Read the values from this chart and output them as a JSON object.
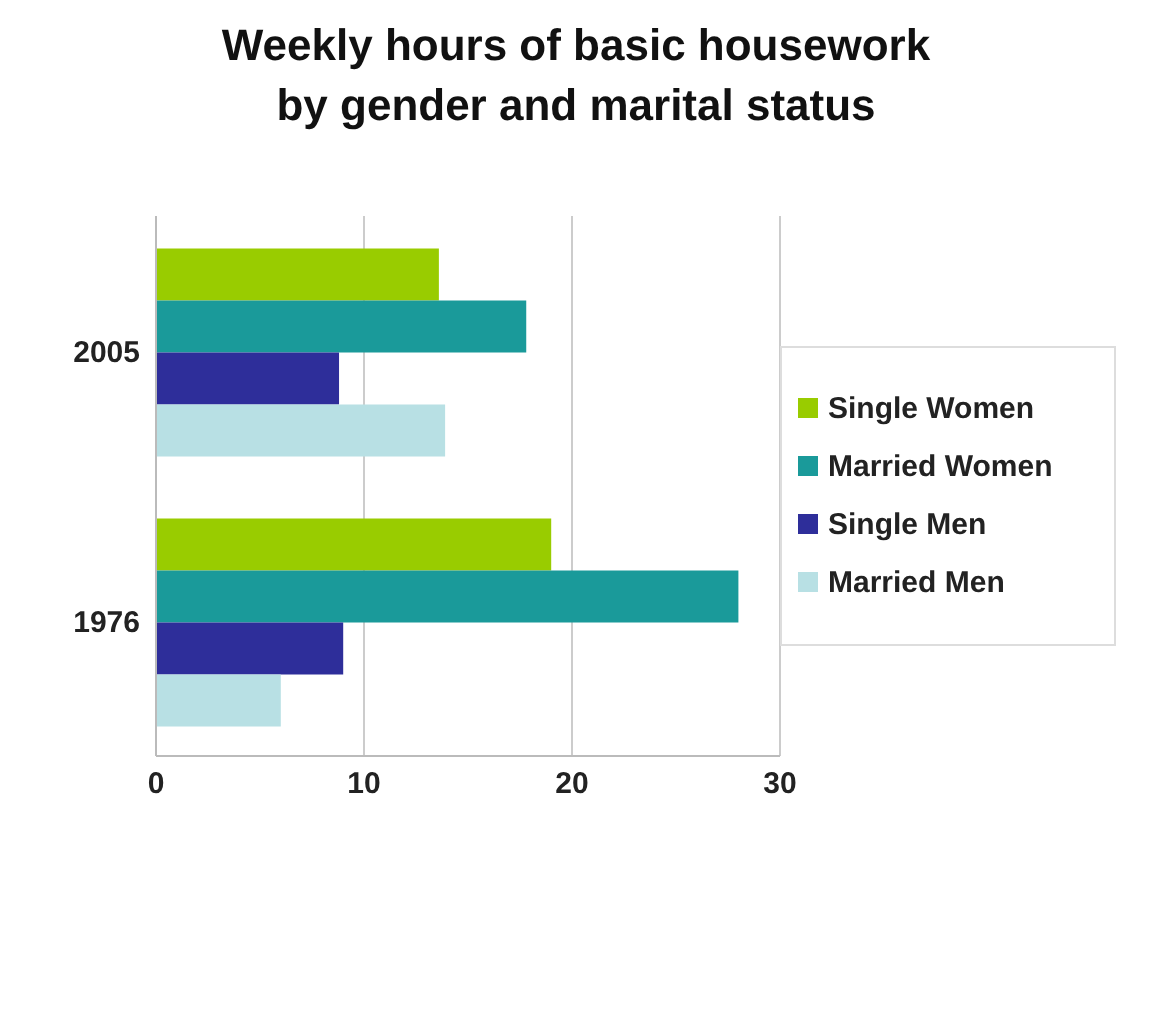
{
  "chart_data": {
    "type": "bar",
    "orientation": "horizontal",
    "title": "Weekly hours of basic housework\nby gender and marital status",
    "categories": [
      "2005",
      "1976"
    ],
    "series": [
      {
        "name": "Single Women",
        "color": "#99cc00",
        "values": [
          13.6,
          19
        ]
      },
      {
        "name": "Married Women",
        "color": "#1a9a9a",
        "values": [
          17.8,
          28
        ]
      },
      {
        "name": "Single Men",
        "color": "#2e2e9a",
        "values": [
          8.8,
          9
        ]
      },
      {
        "name": "Married Men",
        "color": "#b8e0e4",
        "values": [
          13.9,
          6
        ]
      }
    ],
    "xlim": [
      0,
      30
    ],
    "xticks": [
      0,
      10,
      20,
      30
    ],
    "grid": "x",
    "legend": "right"
  }
}
